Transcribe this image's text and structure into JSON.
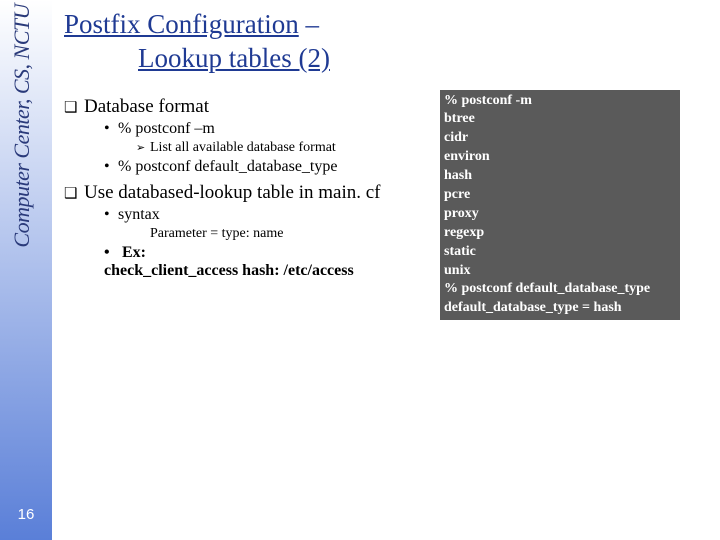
{
  "sidebar": {
    "label": "Computer Center, CS, NCTU",
    "page_number": "16"
  },
  "title": {
    "line1": "Postfix Configuration",
    "dash": " – ",
    "line2": "Lookup tables (2)"
  },
  "left": {
    "q1": "Database format",
    "q1_b1": "% postconf –m",
    "q1_b1_t1": "List all available database format",
    "q1_b2": "% postconf default_database_type",
    "q2": "Use databased-lookup table in main. cf",
    "q2_b1": "syntax",
    "q2_b1_sub": "Parameter = type: name",
    "q2_b2_l1": "Ex:",
    "q2_b2_l2": "check_client_access hash: /etc/access"
  },
  "codebox": {
    "text": "% postconf -m\nbtree\ncidr\nenviron\nhash\npcre\nproxy\nregexp\nstatic\nunix\n% postconf default_database_type\ndefault_database_type = hash"
  }
}
